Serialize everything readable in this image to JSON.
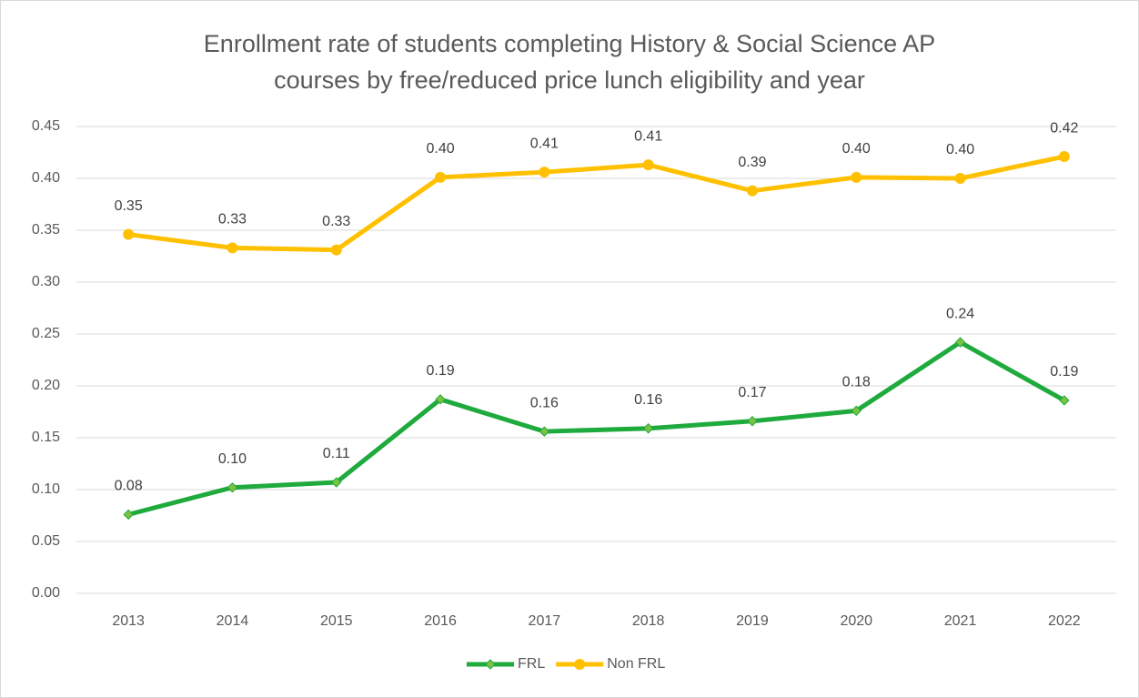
{
  "chart_data": {
    "type": "line",
    "title": "Enrollment rate of students completing History & Social Science AP courses by free/reduced price lunch eligibility and year",
    "categories": [
      "2013",
      "2014",
      "2015",
      "2016",
      "2017",
      "2018",
      "2019",
      "2020",
      "2021",
      "2022"
    ],
    "series": [
      {
        "name": "FRL",
        "color": "#1faa3d",
        "marker": "diamond",
        "marker_color": "#7cc242",
        "values": [
          0.076,
          0.102,
          0.107,
          0.187,
          0.156,
          0.159,
          0.166,
          0.176,
          0.242,
          0.186
        ],
        "value_labels": [
          "0.08",
          "0.10",
          "0.11",
          "0.19",
          "0.16",
          "0.16",
          "0.17",
          "0.18",
          "0.24",
          "0.19"
        ]
      },
      {
        "name": "Non FRL",
        "color": "#ffc000",
        "marker": "circle",
        "marker_color": "#ffc000",
        "values": [
          0.346,
          0.333,
          0.331,
          0.401,
          0.406,
          0.413,
          0.388,
          0.401,
          0.4,
          0.421
        ],
        "value_labels": [
          "0.35",
          "0.33",
          "0.33",
          "0.40",
          "0.41",
          "0.41",
          "0.39",
          "0.40",
          "0.40",
          "0.42"
        ]
      }
    ],
    "ylim": [
      0,
      0.45
    ],
    "yticks": [
      {
        "value": 0,
        "label": "0.00"
      },
      {
        "value": 0.05,
        "label": "0.05"
      },
      {
        "value": 0.1,
        "label": "0.10"
      },
      {
        "value": 0.15,
        "label": "0.15"
      },
      {
        "value": 0.2,
        "label": "0.20"
      },
      {
        "value": 0.25,
        "label": "0.25"
      },
      {
        "value": 0.3,
        "label": "0.30"
      },
      {
        "value": 0.35,
        "label": "0.35"
      },
      {
        "value": 0.4,
        "label": "0.40"
      },
      {
        "value": 0.45,
        "label": "0.45"
      }
    ],
    "grid": true,
    "legend": "bottom"
  }
}
